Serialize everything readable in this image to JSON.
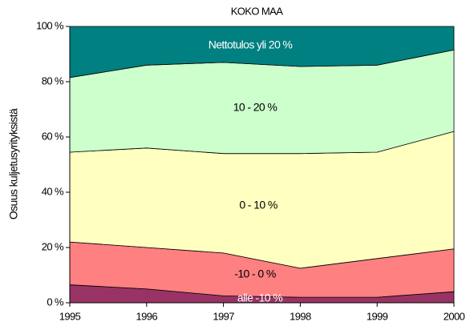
{
  "chart_data": {
    "type": "stacked_area",
    "title": "KOKO MAA",
    "y_label": "Osuus kuljetusyrityksistä",
    "x": [
      1995,
      1996,
      1997,
      1998,
      1999,
      2000
    ],
    "xlim": [
      1995,
      2000
    ],
    "xticks": [
      1995,
      1996,
      1997,
      1998,
      1999,
      2000
    ],
    "ylim": [
      0,
      100
    ],
    "yticks": [
      {
        "value": 0,
        "label": "0 %"
      },
      {
        "value": 20,
        "label": "20 %"
      },
      {
        "value": 40,
        "label": "40 %"
      },
      {
        "value": 60,
        "label": "60 %"
      },
      {
        "value": 80,
        "label": "80 %"
      },
      {
        "value": 100,
        "label": "100 %"
      }
    ],
    "series": [
      {
        "name": "alle -10 %",
        "color": "#993366",
        "values": [
          6.5,
          5,
          2.5,
          2,
          2,
          4
        ]
      },
      {
        "name": "-10 - 0 %",
        "color": "#ff8080",
        "values": [
          15.5,
          15,
          15.5,
          10.5,
          14,
          15.5
        ]
      },
      {
        "name": "0 - 10 %",
        "color": "#ffffc0",
        "values": [
          32.5,
          36,
          36,
          41.5,
          38.5,
          42.5
        ]
      },
      {
        "name": "10 - 20 %",
        "color": "#ccffcc",
        "values": [
          27,
          30,
          33,
          31.5,
          31.5,
          29.5
        ]
      },
      {
        "name": "Nettotulos yli 20 %",
        "color": "#008080",
        "values": [
          18.5,
          14,
          13,
          14.5,
          14,
          8.5
        ]
      }
    ]
  }
}
